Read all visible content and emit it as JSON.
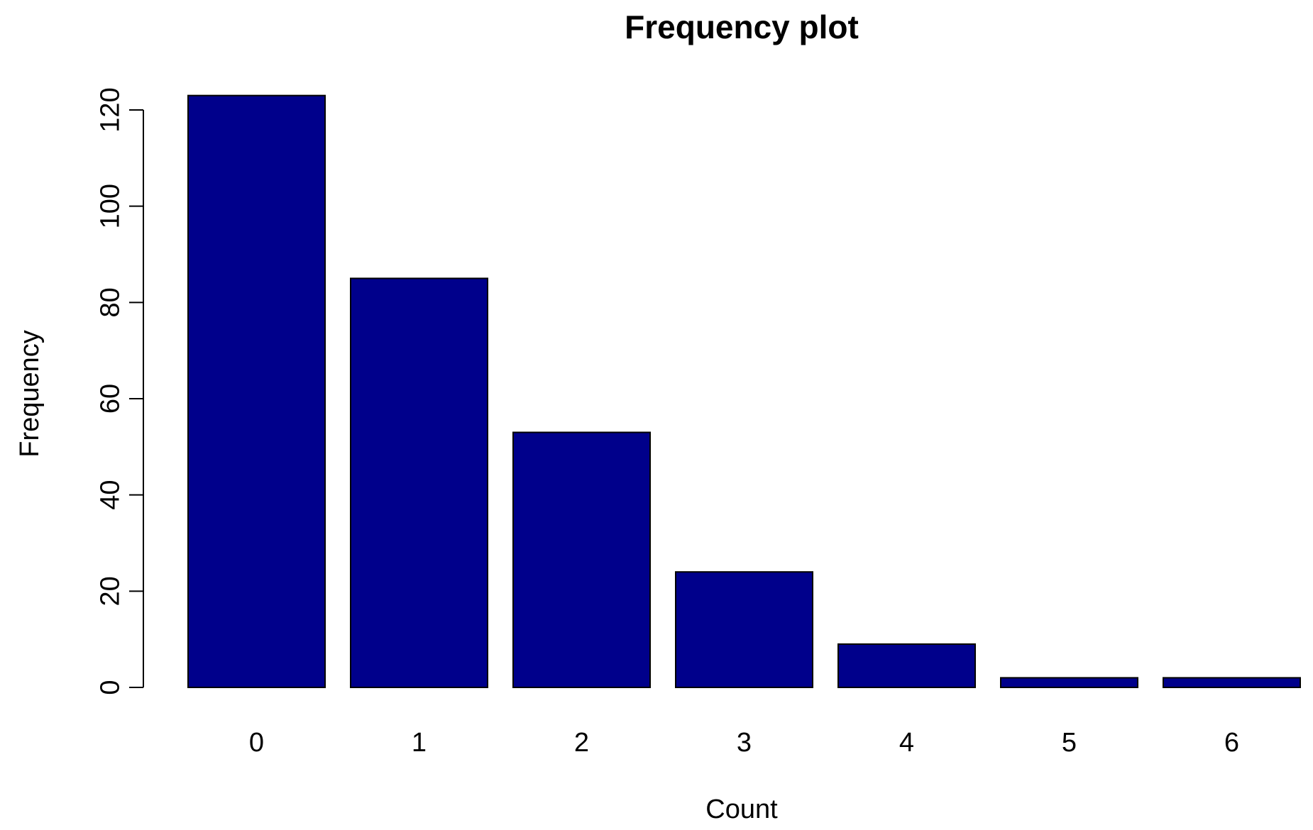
{
  "chart_data": {
    "type": "bar",
    "title": "Frequency plot",
    "xlabel": "Count",
    "ylabel": "Frequency",
    "categories": [
      "0",
      "1",
      "2",
      "3",
      "4",
      "5",
      "6"
    ],
    "values": [
      123,
      85,
      53,
      24,
      9,
      2,
      2
    ],
    "ylim": [
      0,
      120
    ],
    "yticks": [
      "0",
      "20",
      "40",
      "60",
      "80",
      "100",
      "120"
    ],
    "bar_color": "#00008B",
    "bar_border_color": "#000000",
    "grid": false,
    "legend": "none"
  }
}
